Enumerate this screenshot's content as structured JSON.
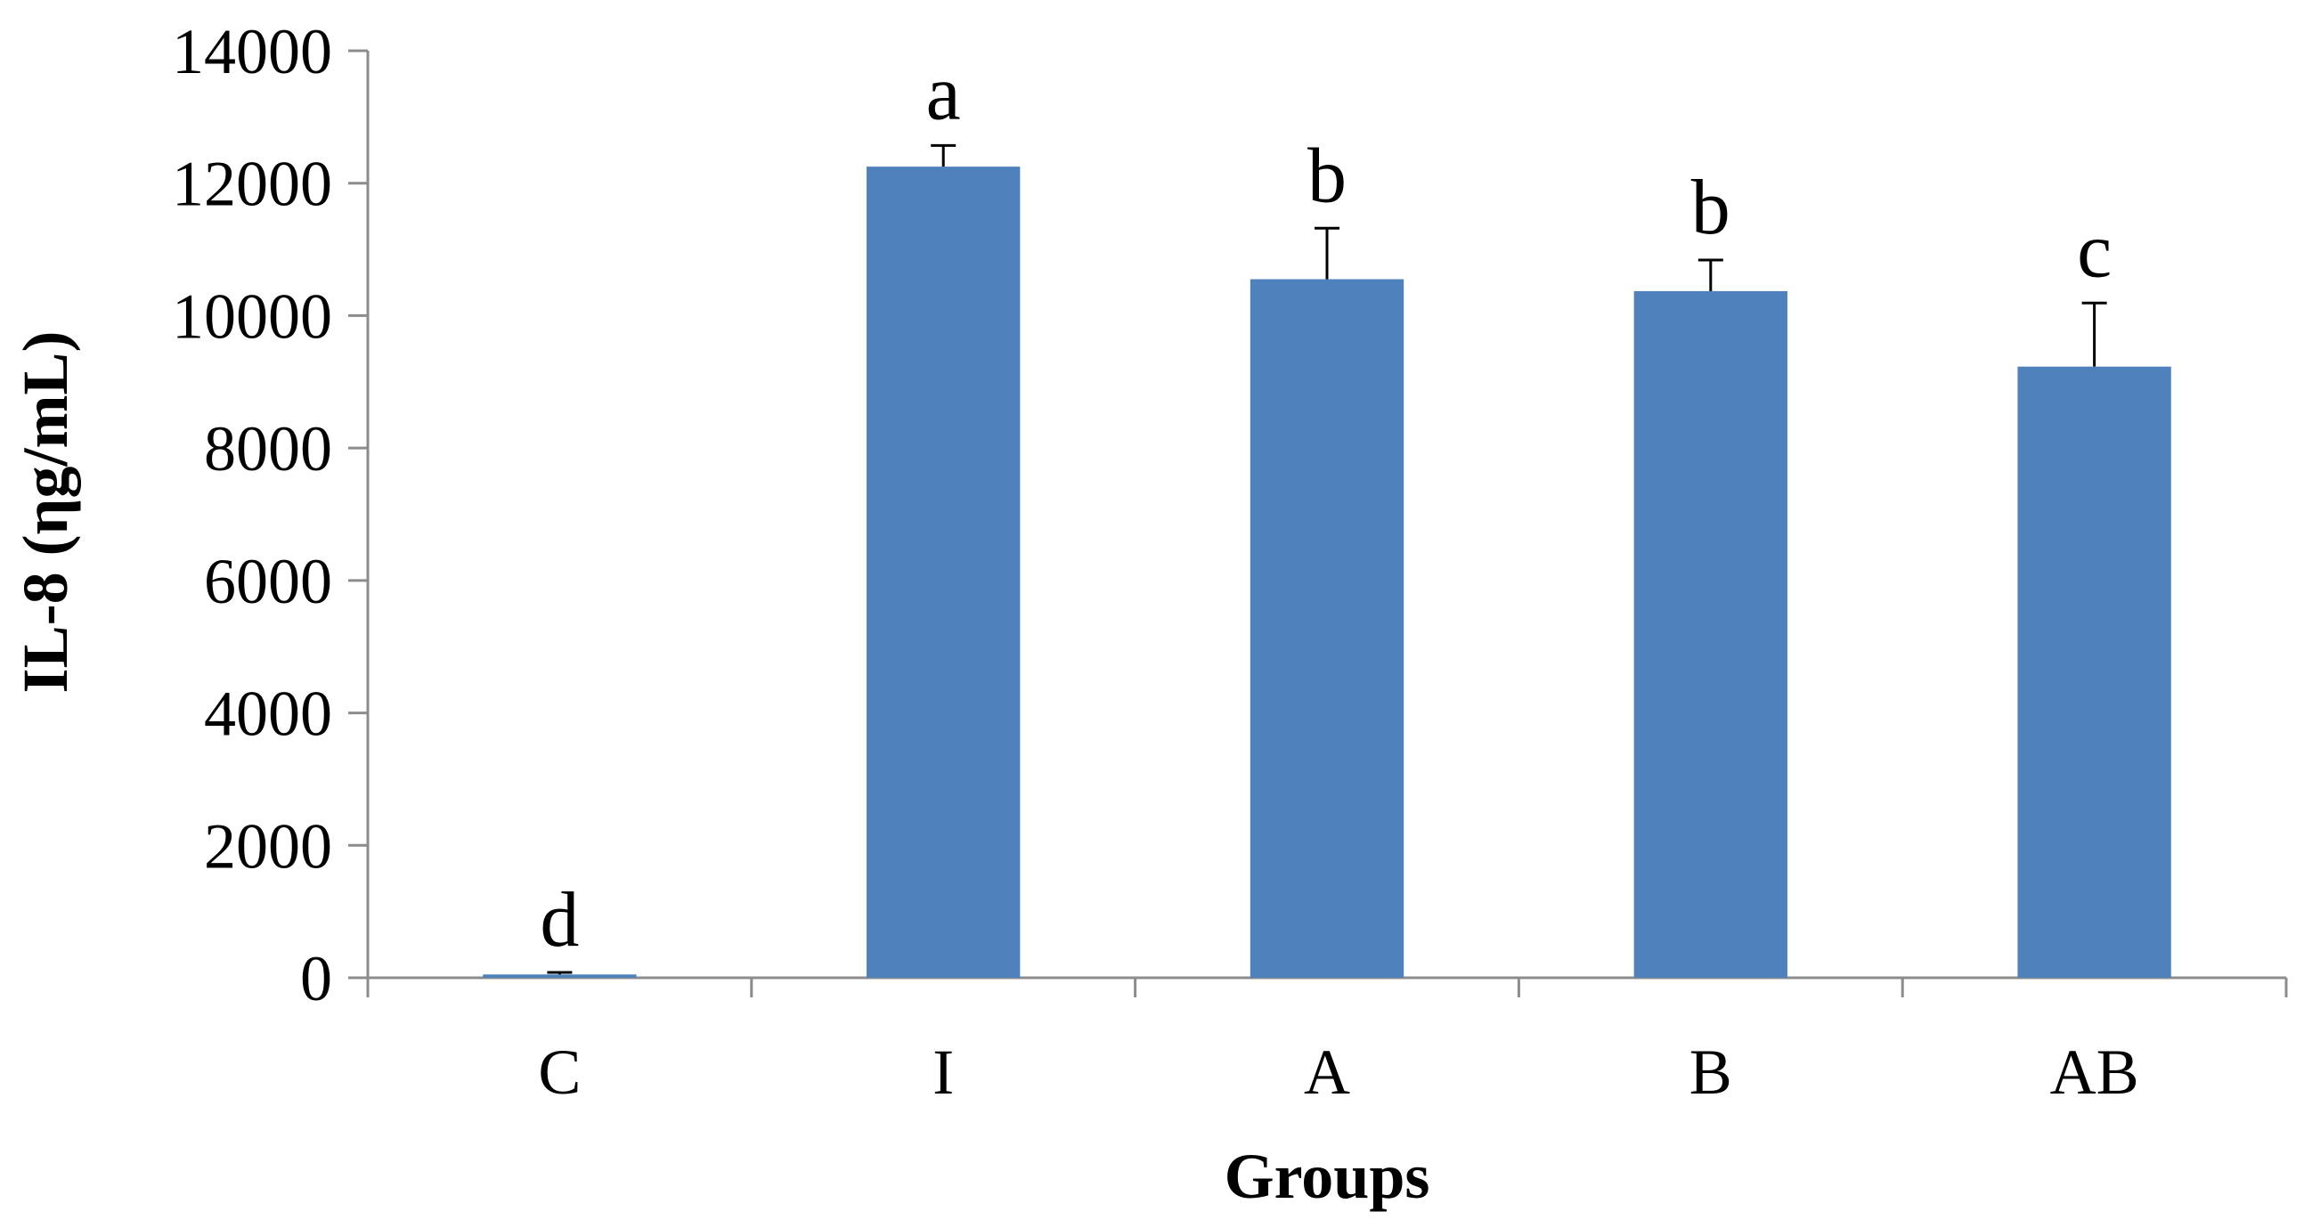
{
  "chart_data": {
    "type": "bar",
    "title": "",
    "xlabel": "Groups",
    "ylabel": "IL-8 (ηg/mL)",
    "ylim": [
      0,
      14000
    ],
    "yticks": [
      0,
      2000,
      4000,
      6000,
      8000,
      10000,
      12000,
      14000
    ],
    "categories": [
      "C",
      "I",
      "A",
      "B",
      "AB"
    ],
    "values": [
      50,
      12250,
      10550,
      10370,
      9230
    ],
    "errors": [
      30,
      320,
      770,
      470,
      960
    ],
    "significance_labels": [
      "d",
      "a",
      "b",
      "b",
      "c"
    ],
    "bar_color": "#4F81BD",
    "grid": false,
    "legend": "none"
  }
}
